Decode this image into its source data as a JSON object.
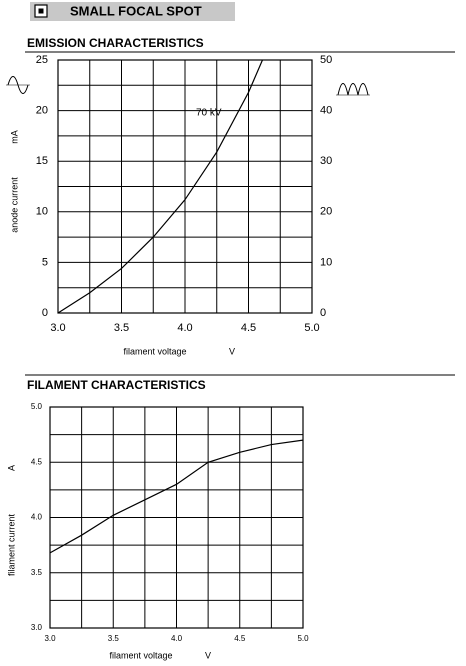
{
  "header": {
    "title": "SMALL FOCAL SPOT"
  },
  "chart_data": [
    {
      "type": "line",
      "title": "EMISSION CHARACTERISTICS",
      "x_label": "filament voltage",
      "x_unit": "V",
      "y_label": "anode current",
      "y_unit": "mA",
      "x": [
        3.0,
        3.25,
        3.5,
        3.75,
        4.0,
        4.25,
        4.5,
        4.61
      ],
      "series": [
        {
          "name": "70 kV",
          "color": "#000000",
          "values": [
            0,
            2.0,
            4.4,
            7.5,
            11.2,
            15.9,
            21.8,
            25
          ]
        }
      ],
      "xlim": [
        3.0,
        5.0
      ],
      "xticks": [
        {
          "value": 3.0,
          "label": "3.0"
        },
        3.5,
        {
          "value": 4.0,
          "label": "4.0"
        },
        4.5,
        {
          "value": 5.0,
          "label": "5.0"
        }
      ],
      "ylim": [
        0,
        25
      ],
      "yticks": [
        0,
        5,
        10,
        15,
        20,
        25
      ],
      "y2lim": [
        0,
        50
      ],
      "y2ticks": [
        0,
        10,
        20,
        30,
        40,
        50
      ],
      "xgrid": [
        3.0,
        3.25,
        3.5,
        3.75,
        4.0,
        4.25,
        4.5,
        4.75,
        5.0
      ],
      "ygrid": [
        0,
        2.5,
        5,
        7.5,
        10,
        12.5,
        15,
        17.5,
        20,
        22.5,
        25
      ],
      "grid": true
    },
    {
      "type": "line",
      "title": "FILAMENT CHARACTERISTICS",
      "x_label": "filament voltage",
      "x_unit": "V",
      "y_label": "filament current",
      "y_unit": "A",
      "x": [
        3.0,
        3.25,
        3.5,
        3.75,
        4.0,
        4.25,
        4.5,
        4.75,
        5.0
      ],
      "series": [
        {
          "color": "#000000",
          "values": [
            3.68,
            3.84,
            4.02,
            4.16,
            4.3,
            4.5,
            4.59,
            4.66,
            4.7
          ]
        }
      ],
      "xlim": [
        3.0,
        5.0
      ],
      "xticks": [
        {
          "value": 3.0,
          "label": "3.0"
        },
        3.5,
        {
          "value": 4.0,
          "label": "4.0"
        },
        4.5,
        {
          "value": 5.0,
          "label": "5.0"
        }
      ],
      "ylim": [
        3.0,
        5.0
      ],
      "yticks": [
        {
          "value": 3.0,
          "label": "3.0"
        },
        3.5,
        {
          "value": 4.0,
          "label": "4.0"
        },
        4.5,
        {
          "value": 5.0,
          "label": "5.0"
        }
      ],
      "xgrid": [
        3.0,
        3.25,
        3.5,
        3.75,
        4.0,
        4.25,
        4.5,
        4.75,
        5.0
      ],
      "ygrid": [
        3.0,
        3.25,
        3.5,
        3.75,
        4.0,
        4.25,
        4.5,
        4.75,
        5.0
      ],
      "grid": true
    }
  ]
}
